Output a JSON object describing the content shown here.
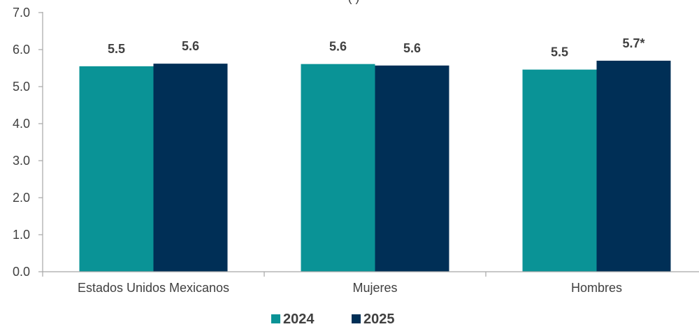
{
  "chart_data": {
    "type": "bar",
    "title_fragment": "(        )",
    "categories": [
      "Estados Unidos Mexicanos",
      "Mujeres",
      "Hombres"
    ],
    "series": [
      {
        "name": "2024",
        "color": "#0A9396",
        "values": [
          5.55,
          5.61,
          5.46
        ],
        "labels": [
          "5.5",
          "5.6",
          "5.5"
        ]
      },
      {
        "name": "2025",
        "color": "#002F56",
        "values": [
          5.62,
          5.57,
          5.7
        ],
        "labels": [
          "5.6",
          "5.6",
          "5.7*"
        ]
      }
    ],
    "ylim": [
      0,
      7
    ],
    "yticks": [
      "0.0",
      "1.0",
      "2.0",
      "3.0",
      "4.0",
      "5.0",
      "6.0",
      "7.0"
    ],
    "grid": false,
    "legend_position": "bottom-center"
  }
}
